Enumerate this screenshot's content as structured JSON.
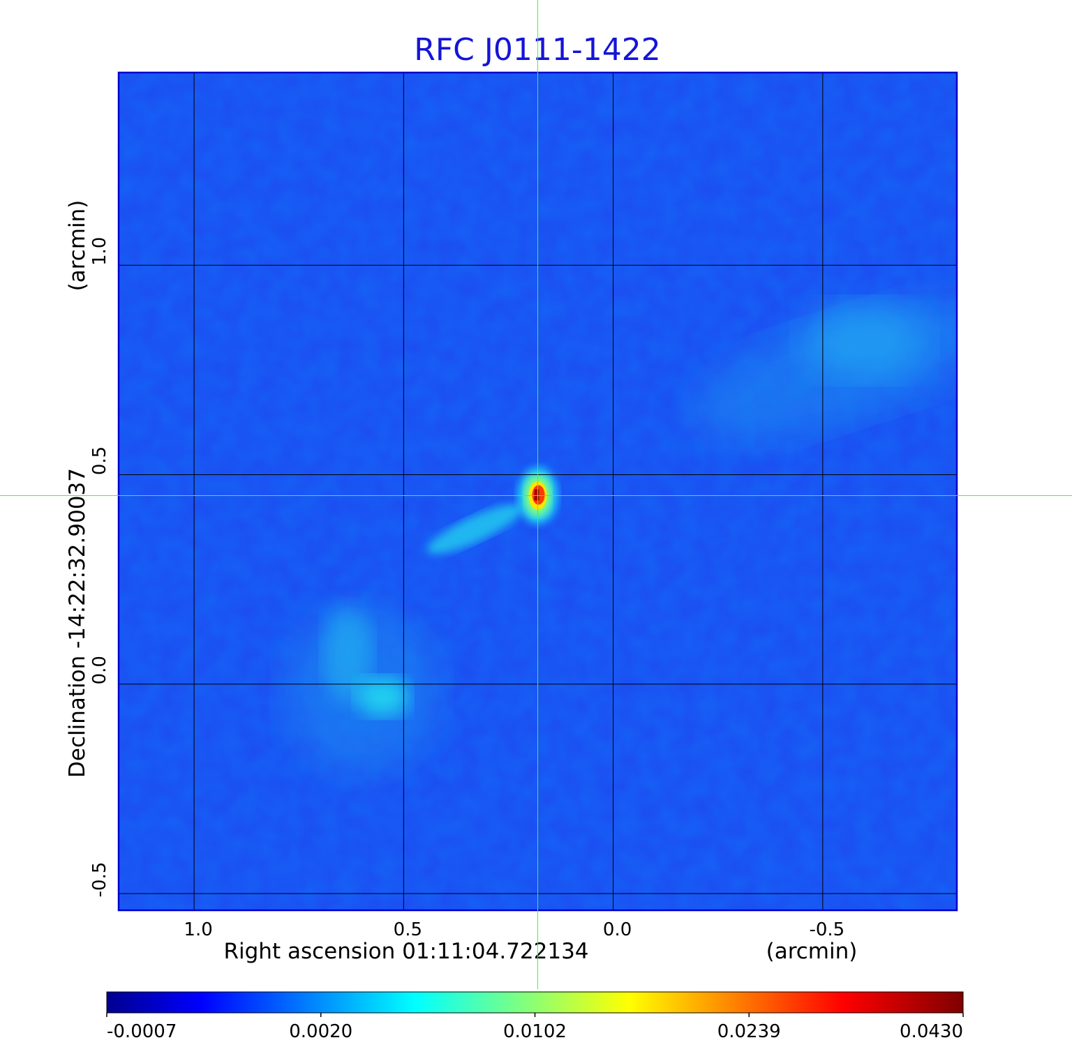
{
  "chart_data": {
    "type": "heatmap",
    "title": "RFC J0111-1422",
    "xlabel": "Right ascension  01:11:04.722134",
    "xunit": "(arcmin)",
    "ylabel": "Declination  -14:22:32.90037",
    "yunit": "(arcmin)",
    "x_ticks": [
      "1.0",
      "0.5",
      "0.0",
      "-0.5"
    ],
    "x_tick_values": [
      1.0,
      0.5,
      0.0,
      -0.5
    ],
    "y_ticks": [
      "1.0",
      "0.5",
      "0.0",
      "-0.5"
    ],
    "y_tick_values": [
      1.0,
      0.5,
      0.0,
      -0.5
    ],
    "xlim": [
      1.18,
      -0.82
    ],
    "ylim": [
      -0.54,
      1.46
    ],
    "grid": true,
    "crosshair": {
      "x": 0.18,
      "y": 0.45
    },
    "colormap": "jet",
    "colorbar_ticks": [
      "-0.0007",
      "0.0020",
      "0.0102",
      "0.0239",
      "0.0430"
    ],
    "colorbar_range": [
      -0.0007,
      0.043
    ],
    "features": [
      {
        "name": "core",
        "x": 0.18,
        "y": 0.45,
        "peak": 0.043
      },
      {
        "name": "jet",
        "x": 0.33,
        "y": 0.37,
        "peak": 0.008
      },
      {
        "name": "blob-south",
        "x": 0.55,
        "y": -0.03,
        "peak": 0.004
      },
      {
        "name": "blob-northwest",
        "x": -0.6,
        "y": 0.82,
        "peak": 0.0028
      }
    ],
    "colors": {
      "title": "#1414d8",
      "frame": "#0000cc",
      "crosshair": "#33ff33",
      "grid": "#000000"
    }
  }
}
